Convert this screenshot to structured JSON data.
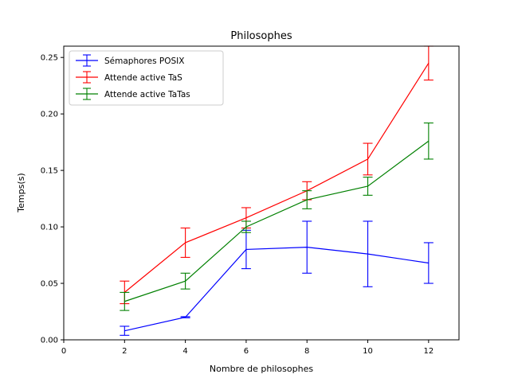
{
  "chart_data": {
    "type": "line",
    "title": "Philosophes",
    "xlabel": "Nombre de philosophes",
    "ylabel": "Temps(s)",
    "xlim": [
      0,
      13
    ],
    "ylim": [
      0,
      0.26
    ],
    "xticks": [
      0,
      2,
      4,
      6,
      8,
      10,
      12
    ],
    "xtick_labels": [
      "0",
      "2",
      "4",
      "6",
      "8",
      "10",
      "12"
    ],
    "yticks": [
      0,
      0.05,
      0.1,
      0.15,
      0.2,
      0.25
    ],
    "ytick_labels": [
      "0.00",
      "0.05",
      "0.10",
      "0.15",
      "0.20",
      "0.25"
    ],
    "grid": false,
    "legend_position": "top-left",
    "x": [
      2,
      4,
      6,
      8,
      10,
      12
    ],
    "series": [
      {
        "name": "Sémaphores POSIX",
        "color": "#0000ff",
        "values": [
          0.008,
          0.02,
          0.08,
          0.082,
          0.076,
          0.068
        ],
        "errors": [
          0.004,
          0.0005,
          0.017,
          0.023,
          0.029,
          0.018
        ]
      },
      {
        "name": "Attende active TaS",
        "color": "#ff0000",
        "values": [
          0.042,
          0.086,
          0.108,
          0.132,
          0.16,
          0.245
        ],
        "errors": [
          0.01,
          0.013,
          0.009,
          0.008,
          0.014,
          0.015
        ]
      },
      {
        "name": "Attende active TaTas",
        "color": "#008000",
        "values": [
          0.034,
          0.052,
          0.1,
          0.124,
          0.136,
          0.176
        ],
        "errors": [
          0.008,
          0.007,
          0.005,
          0.008,
          0.008,
          0.016
        ]
      }
    ]
  }
}
